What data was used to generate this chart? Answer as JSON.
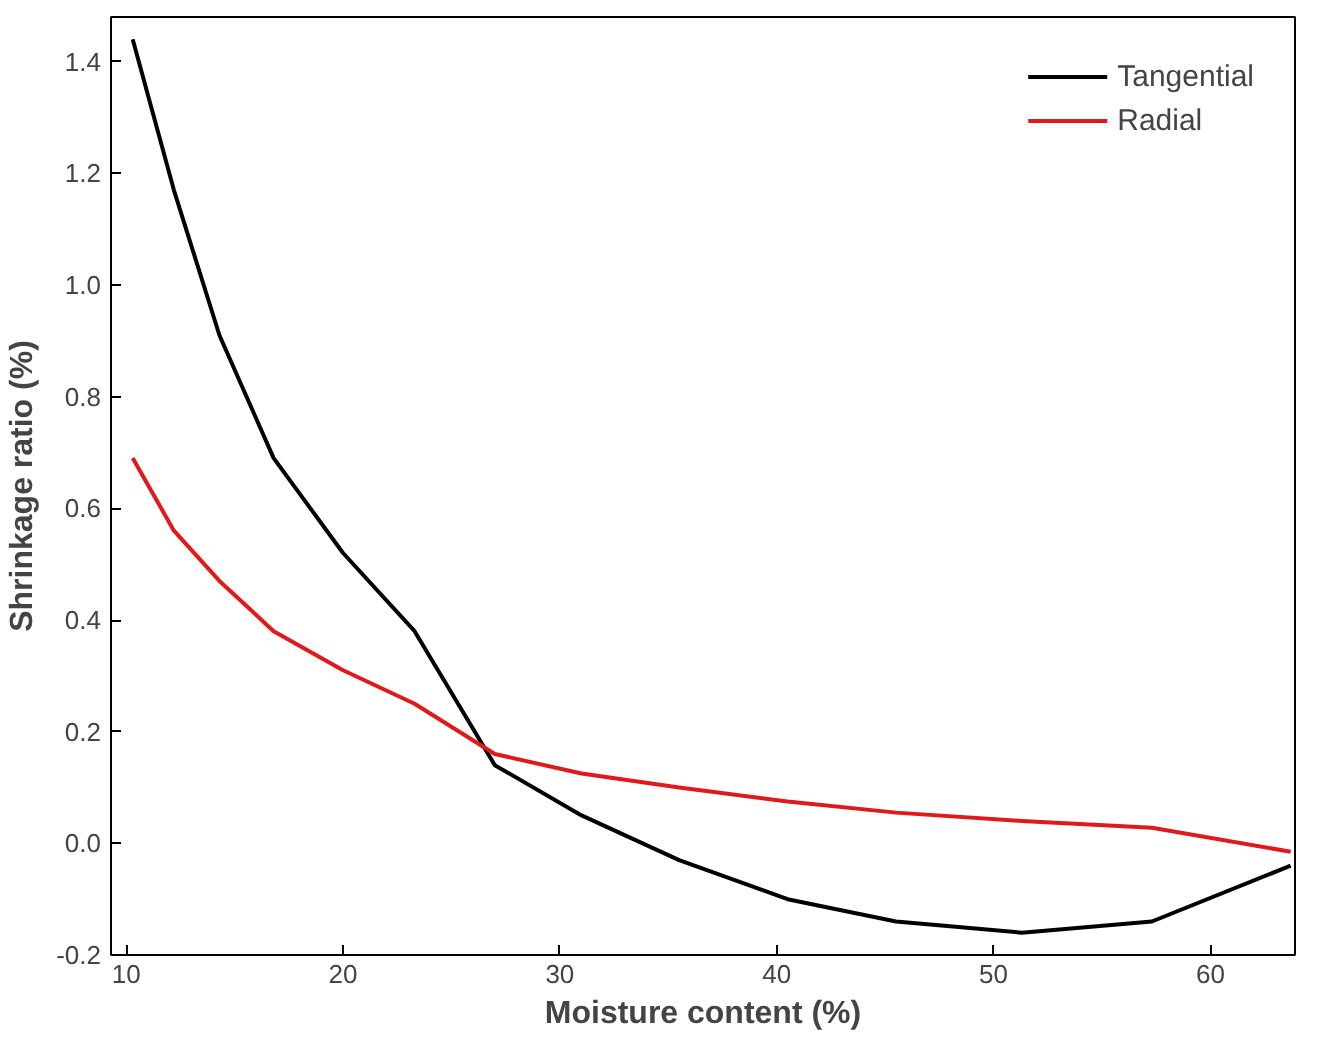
{
  "chart_data": {
    "type": "line",
    "xlabel": "Moisture content (%)",
    "ylabel": "Shrinkage ratio (%)",
    "xlim": [
      9.3,
      63.9
    ],
    "ylim": [
      -0.2,
      1.48
    ],
    "xticks": [
      10,
      20,
      30,
      40,
      50,
      60
    ],
    "yticks": [
      {
        "value": -0.2,
        "label": "-0.2"
      },
      {
        "value": 0,
        "label": "0.0"
      },
      {
        "value": 0.2,
        "label": "0.2"
      },
      {
        "value": 0.4,
        "label": "0.4"
      },
      {
        "value": 0.6,
        "label": "0.6"
      },
      {
        "value": 0.8,
        "label": "0.8"
      },
      {
        "value": 1.0,
        "label": "1.0"
      },
      {
        "value": 1.2,
        "label": "1.2"
      },
      {
        "value": 1.4,
        "label": "1.4"
      }
    ],
    "x": [
      10.3,
      12.2,
      14.3,
      16.8,
      20,
      23.3,
      27,
      31,
      35.5,
      40.5,
      45.5,
      51.3,
      57.3,
      63.7
    ],
    "series": [
      {
        "name": "Tangential",
        "color": "#000000",
        "values": [
          1.44,
          1.17,
          0.91,
          0.69,
          0.52,
          0.38,
          0.14,
          0.05,
          -0.03,
          -0.1,
          -0.14,
          -0.16,
          -0.14,
          -0.04
        ]
      },
      {
        "name": "Radial",
        "color": "#e0191b",
        "values": [
          0.69,
          0.56,
          0.47,
          0.38,
          0.31,
          0.25,
          0.16,
          0.125,
          0.1,
          0.075,
          0.055,
          0.04,
          0.028,
          -0.015
        ]
      }
    ],
    "grid": false,
    "legend": "top right",
    "line_style": "solid"
  }
}
